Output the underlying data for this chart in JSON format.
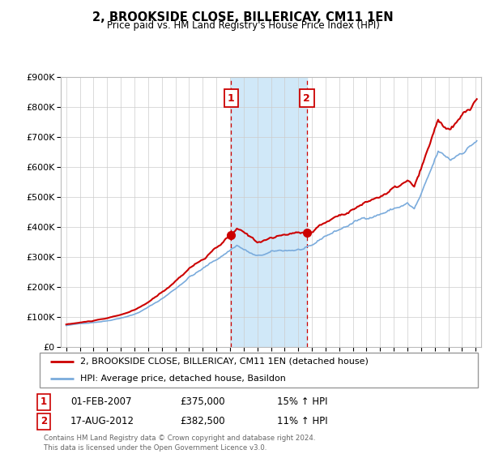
{
  "title": "2, BROOKSIDE CLOSE, BILLERICAY, CM11 1EN",
  "subtitle": "Price paid vs. HM Land Registry's House Price Index (HPI)",
  "legend_line1": "2, BROOKSIDE CLOSE, BILLERICAY, CM11 1EN (detached house)",
  "legend_line2": "HPI: Average price, detached house, Basildon",
  "transaction1_date": "01-FEB-2007",
  "transaction1_price": "£375,000",
  "transaction1_hpi": "15% ↑ HPI",
  "transaction2_date": "17-AUG-2012",
  "transaction2_price": "£382,500",
  "transaction2_hpi": "11% ↑ HPI",
  "footer": "Contains HM Land Registry data © Crown copyright and database right 2024.\nThis data is licensed under the Open Government Licence v3.0.",
  "hpi_color": "#7aabdc",
  "price_color": "#cc0000",
  "vline_color": "#cc0000",
  "shade_color": "#d0e8f8",
  "ylim_min": 0,
  "ylim_max": 900000,
  "yticks": [
    0,
    100000,
    200000,
    300000,
    400000,
    500000,
    600000,
    700000,
    800000,
    900000
  ],
  "ytick_labels": [
    "£0",
    "£100K",
    "£200K",
    "£300K",
    "£400K",
    "£500K",
    "£600K",
    "£700K",
    "£800K",
    "£900K"
  ],
  "t1_year": 2007.08,
  "t1_price": 375000,
  "t2_year": 2012.63,
  "t2_price": 382500,
  "background_color": "#ffffff",
  "grid_color": "#cccccc"
}
